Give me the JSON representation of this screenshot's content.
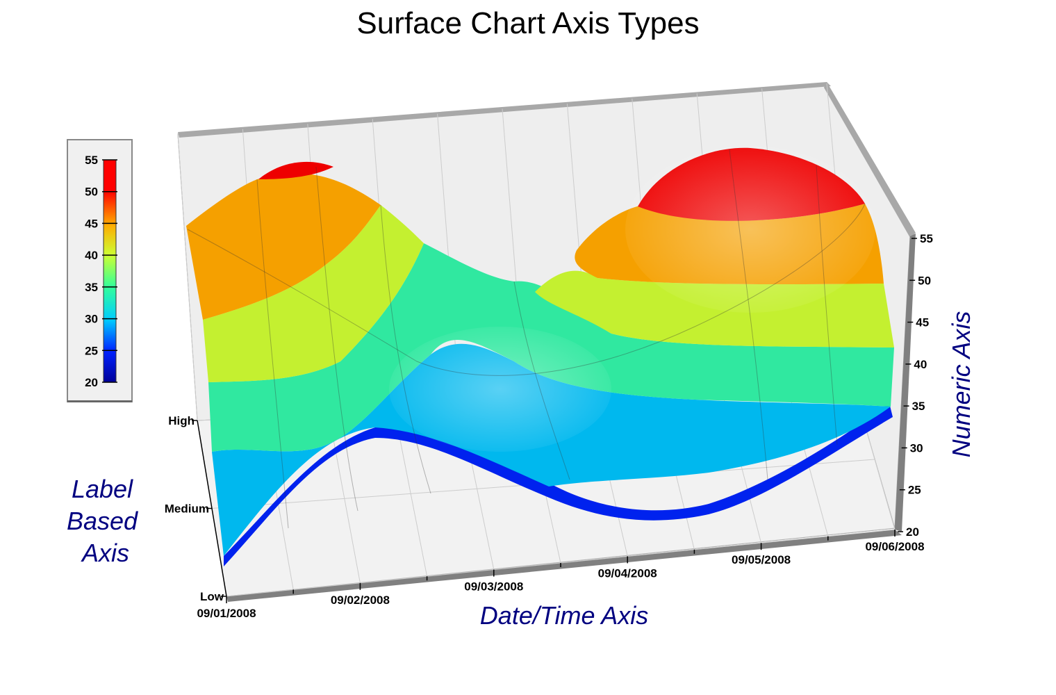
{
  "chart_data": {
    "type": "surface",
    "title": "Surface Chart Axis Types",
    "x_axis": {
      "title": "Date/Time Axis",
      "type": "datetime",
      "tick_labels": [
        "09/01/2008",
        "09/02/2008",
        "09/03/2008",
        "09/04/2008",
        "09/05/2008",
        "09/06/2008"
      ]
    },
    "y_axis": {
      "title": "Label Based Axis",
      "type": "label",
      "tick_labels": [
        "Low",
        "Medium",
        "High"
      ]
    },
    "z_axis": {
      "title": "Numeric Axis",
      "type": "numeric",
      "range": [
        20,
        55
      ],
      "tick_labels": [
        "20",
        "25",
        "30",
        "35",
        "40",
        "45",
        "50",
        "55"
      ]
    },
    "color_legend": {
      "range": [
        20,
        55
      ],
      "ticks": [
        "20",
        "25",
        "30",
        "35",
        "40",
        "45",
        "50",
        "55"
      ],
      "colors": [
        "#000099",
        "#0033ff",
        "#00ccff",
        "#33ff99",
        "#ccff33",
        "#ffaa00",
        "#ff0000"
      ]
    },
    "series": [
      {
        "name": "Low",
        "values": [
          22,
          33,
          40,
          28,
          34,
          36
        ]
      },
      {
        "name": "Medium",
        "values": [
          35,
          40,
          37,
          30,
          40,
          40
        ]
      },
      {
        "name": "High",
        "values": [
          52,
          54,
          38,
          43,
          54,
          50
        ]
      }
    ],
    "colors": {
      "frame": "#a0a0a0",
      "wall": "#eeeeee",
      "grid": "#c8c8c8",
      "axis_title": "#000080"
    }
  }
}
